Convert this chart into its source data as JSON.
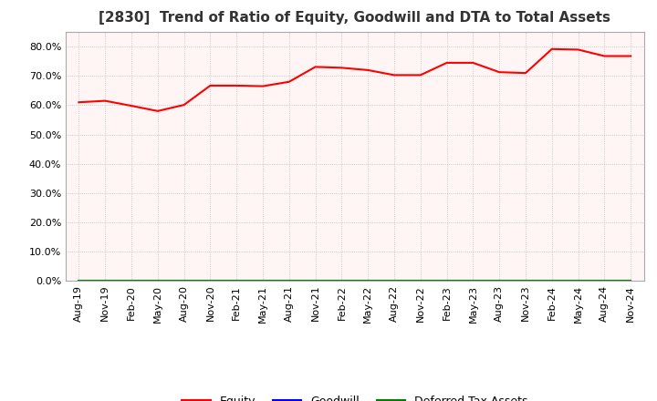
{
  "title": "[2830]  Trend of Ratio of Equity, Goodwill and DTA to Total Assets",
  "x_labels": [
    "Aug-19",
    "Nov-19",
    "Feb-20",
    "May-20",
    "Aug-20",
    "Nov-20",
    "Feb-21",
    "May-21",
    "Aug-21",
    "Nov-21",
    "Feb-22",
    "May-22",
    "Aug-22",
    "Nov-22",
    "Feb-23",
    "May-23",
    "Aug-23",
    "Nov-23",
    "Feb-24",
    "May-24",
    "Aug-24",
    "Nov-24"
  ],
  "equity": [
    0.61,
    0.615,
    0.598,
    0.58,
    0.601,
    0.667,
    0.667,
    0.665,
    0.68,
    0.731,
    0.728,
    0.72,
    0.703,
    0.703,
    0.745,
    0.745,
    0.713,
    0.71,
    0.792,
    0.79,
    0.768,
    0.768
  ],
  "goodwill": [
    0.0,
    0.0,
    0.0,
    0.0,
    0.0,
    0.0,
    0.0,
    0.0,
    0.0,
    0.0,
    0.0,
    0.0,
    0.0,
    0.0,
    0.0,
    0.0,
    0.0,
    0.0,
    0.0,
    0.0,
    0.0,
    0.0
  ],
  "dta": [
    0.0,
    0.0,
    0.0,
    0.0,
    0.0,
    0.0,
    0.0,
    0.0,
    0.0,
    0.0,
    0.0,
    0.0,
    0.0,
    0.0,
    0.0,
    0.0,
    0.0,
    0.0,
    0.0,
    0.0,
    0.0,
    0.0
  ],
  "equity_color": "#FF0000",
  "goodwill_color": "#0000FF",
  "dta_color": "#008000",
  "ylim": [
    0.0,
    0.85
  ],
  "yticks": [
    0.0,
    0.1,
    0.2,
    0.3,
    0.4,
    0.5,
    0.6,
    0.7,
    0.8
  ],
  "background_color": "#FFFFFF",
  "plot_bg_color": "#FFF5F5",
  "grid_color": "#BBBBBB",
  "title_fontsize": 11,
  "tick_fontsize": 8,
  "legend_labels": [
    "Equity",
    "Goodwill",
    "Deferred Tax Assets"
  ]
}
